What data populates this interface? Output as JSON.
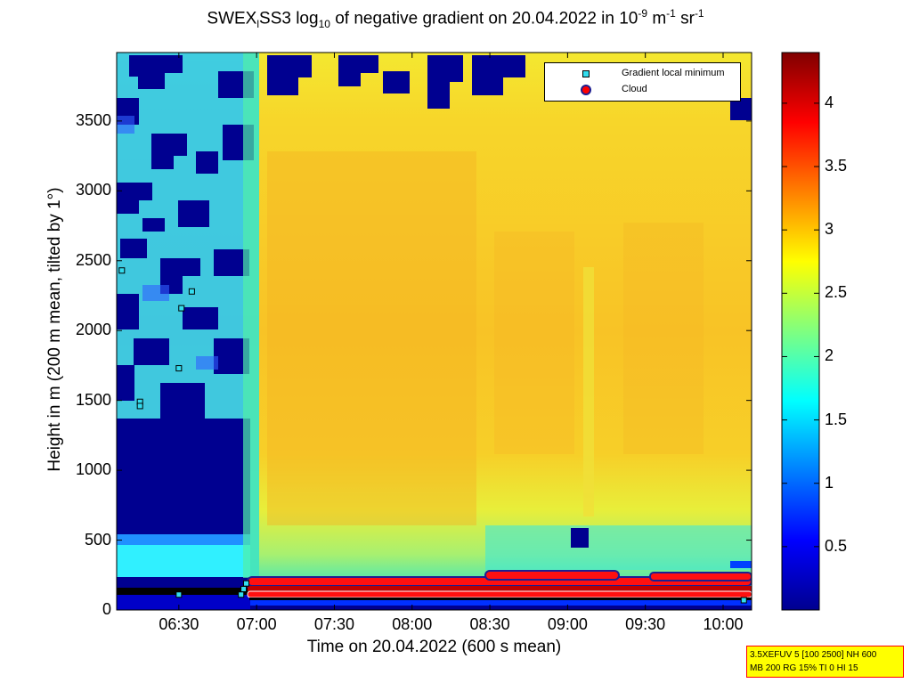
{
  "figure": {
    "title_main": "SWEX",
    "title_sub1": "l",
    "title_mid": "SS3 log",
    "title_sub2": "10",
    "title_text": " of negative gradient on 20.04.2022 in 10",
    "title_sup1": "-9",
    "title_unit1": " m",
    "title_sup2": "-1",
    "title_unit2": " sr",
    "title_sup3": "-1",
    "xlabel": "Time on 20.04.2022 (600 s mean)",
    "ylabel": "Height in m (200 m mean, tilted by 1°)",
    "info_line1": "3.5XEFUV 5 [100 2500] NH 600",
    "info_line2": "MB 200 RG 15% TI 0 HI 15"
  },
  "legend": {
    "item1": "Gradient local minimum",
    "item2": "Cloud"
  },
  "chart_data": {
    "type": "heatmap",
    "colormap": "jet",
    "x_ticks": [
      "06:30",
      "07:00",
      "07:30",
      "08:00",
      "08:30",
      "09:00",
      "09:30",
      "10:00"
    ],
    "x_range": [
      "06:06",
      "10:11"
    ],
    "y_ticks": [
      "0",
      "500",
      "1000",
      "1500",
      "2000",
      "2500",
      "3000",
      "3500"
    ],
    "ylim": [
      0,
      3990
    ],
    "colorbar_ticks": [
      "0.5",
      "1",
      "1.5",
      "2",
      "2.5",
      "3",
      "3.5",
      "4"
    ],
    "clim": [
      0,
      4.4
    ],
    "gradient_local_minimum": [
      {
        "time": "06:08",
        "height": 2430
      },
      {
        "time": "06:15",
        "height": 1490
      },
      {
        "time": "06:15",
        "height": 1460
      },
      {
        "time": "06:30",
        "height": 1730
      },
      {
        "time": "06:31",
        "height": 2160
      },
      {
        "time": "06:35",
        "height": 2280
      },
      {
        "time": "06:30",
        "height": 110
      },
      {
        "time": "06:54",
        "height": 110
      },
      {
        "time": "06:55",
        "height": 150
      },
      {
        "time": "06:56",
        "height": 190
      },
      {
        "time": "10:08",
        "height": 70
      }
    ],
    "cloud_layers": [
      {
        "start": "06:55",
        "end": "10:10",
        "height": 150
      },
      {
        "start": "06:55",
        "end": "10:10",
        "height": 110
      },
      {
        "start": "08:25",
        "end": "10:10",
        "height": 230
      }
    ],
    "legend_position": "top-right"
  }
}
